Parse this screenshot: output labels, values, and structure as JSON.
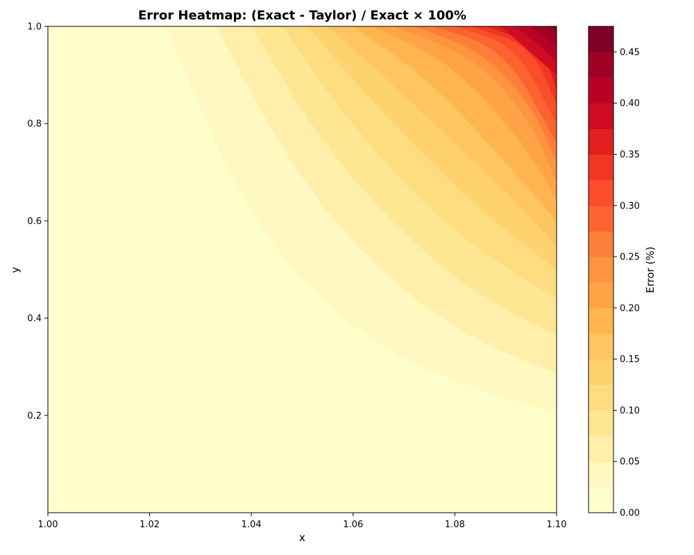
{
  "chart_data": {
    "type": "heatmap",
    "title": "Error Heatmap: (Exact - Taylor) / Exact × 100%",
    "xlabel": "x",
    "ylabel": "y",
    "xlim": [
      1.0,
      1.1
    ],
    "ylim": [
      0.0,
      1.0
    ],
    "x_ticks": [
      "1.00",
      "1.02",
      "1.04",
      "1.06",
      "1.08",
      "1.10"
    ],
    "y_ticks": [
      "0.2",
      "0.4",
      "0.6",
      "0.8",
      "1.0"
    ],
    "colorbar": {
      "label": "Error (%)",
      "range": [
        0.0,
        0.475
      ],
      "ticks": [
        "0.00",
        "0.05",
        "0.10",
        "0.15",
        "0.20",
        "0.25",
        "0.30",
        "0.35",
        "0.40",
        "0.45"
      ],
      "level_step": 0.025,
      "colormap": "YlOrRd"
    },
    "contour_levels": [
      {
        "level": 0.025,
        "points": [
          [
            1.023,
            1.0
          ],
          [
            1.04,
            0.59
          ],
          [
            1.06,
            0.37
          ],
          [
            1.08,
            0.265
          ],
          [
            1.1,
            0.205
          ]
        ]
      },
      {
        "level": 0.05,
        "points": [
          [
            1.033,
            1.0
          ],
          [
            1.05,
            0.67
          ],
          [
            1.07,
            0.45
          ],
          [
            1.085,
            0.35
          ],
          [
            1.1,
            0.285
          ]
        ]
      },
      {
        "level": 0.075,
        "points": [
          [
            1.04,
            1.0
          ],
          [
            1.055,
            0.74
          ],
          [
            1.075,
            0.52
          ],
          [
            1.09,
            0.415
          ],
          [
            1.1,
            0.365
          ]
        ]
      },
      {
        "level": 0.1,
        "points": [
          [
            1.046,
            1.0
          ],
          [
            1.06,
            0.79
          ],
          [
            1.08,
            0.57
          ],
          [
            1.1,
            0.44
          ]
        ]
      },
      {
        "level": 0.125,
        "points": [
          [
            1.051,
            1.0
          ],
          [
            1.065,
            0.83
          ],
          [
            1.085,
            0.62
          ],
          [
            1.1,
            0.5
          ]
        ]
      },
      {
        "level": 0.15,
        "points": [
          [
            1.055,
            1.0
          ],
          [
            1.07,
            0.86
          ],
          [
            1.09,
            0.66
          ],
          [
            1.1,
            0.55
          ]
        ]
      },
      {
        "level": 0.175,
        "points": [
          [
            1.06,
            1.0
          ],
          [
            1.075,
            0.89
          ],
          [
            1.09,
            0.72
          ],
          [
            1.1,
            0.6
          ]
        ]
      },
      {
        "level": 0.2,
        "points": [
          [
            1.064,
            1.0
          ],
          [
            1.08,
            0.92
          ],
          [
            1.095,
            0.74
          ],
          [
            1.1,
            0.64
          ]
        ]
      },
      {
        "level": 0.225,
        "points": [
          [
            1.068,
            1.0
          ],
          [
            1.085,
            0.93
          ],
          [
            1.095,
            0.8
          ],
          [
            1.1,
            0.68
          ]
        ]
      },
      {
        "level": 0.25,
        "points": [
          [
            1.072,
            1.0
          ],
          [
            1.085,
            0.95
          ],
          [
            1.095,
            0.84
          ],
          [
            1.1,
            0.72
          ]
        ]
      },
      {
        "level": 0.275,
        "points": [
          [
            1.076,
            1.0
          ],
          [
            1.09,
            0.95
          ],
          [
            1.1,
            0.76
          ]
        ]
      },
      {
        "level": 0.3,
        "points": [
          [
            1.08,
            1.0
          ],
          [
            1.092,
            0.96
          ],
          [
            1.1,
            0.8
          ]
        ]
      },
      {
        "level": 0.325,
        "points": [
          [
            1.083,
            1.0
          ],
          [
            1.095,
            0.96
          ],
          [
            1.1,
            0.84
          ]
        ]
      },
      {
        "level": 0.35,
        "points": [
          [
            1.086,
            1.0
          ],
          [
            1.097,
            0.96
          ],
          [
            1.1,
            0.87
          ]
        ]
      },
      {
        "level": 0.375,
        "points": [
          [
            1.089,
            1.0
          ],
          [
            1.1,
            0.9
          ]
        ]
      },
      {
        "level": 0.4,
        "points": [
          [
            1.092,
            1.0
          ],
          [
            1.1,
            0.93
          ]
        ]
      },
      {
        "level": 0.425,
        "points": [
          [
            1.095,
            1.0
          ],
          [
            1.1,
            0.96
          ]
        ]
      },
      {
        "level": 0.45,
        "points": [
          [
            1.098,
            1.0
          ],
          [
            1.1,
            0.985
          ]
        ]
      }
    ],
    "level_colors": [
      "#ffffcc",
      "#fff8c0",
      "#ffefab",
      "#fee692",
      "#fedd80",
      "#fed26f",
      "#fec561",
      "#feb54e",
      "#fea446",
      "#fd943f",
      "#fd7e39",
      "#fc6331",
      "#fa4d2a",
      "#f03723",
      "#e21f1e",
      "#cf0c22",
      "#b90026",
      "#9f0026",
      "#800026"
    ]
  }
}
